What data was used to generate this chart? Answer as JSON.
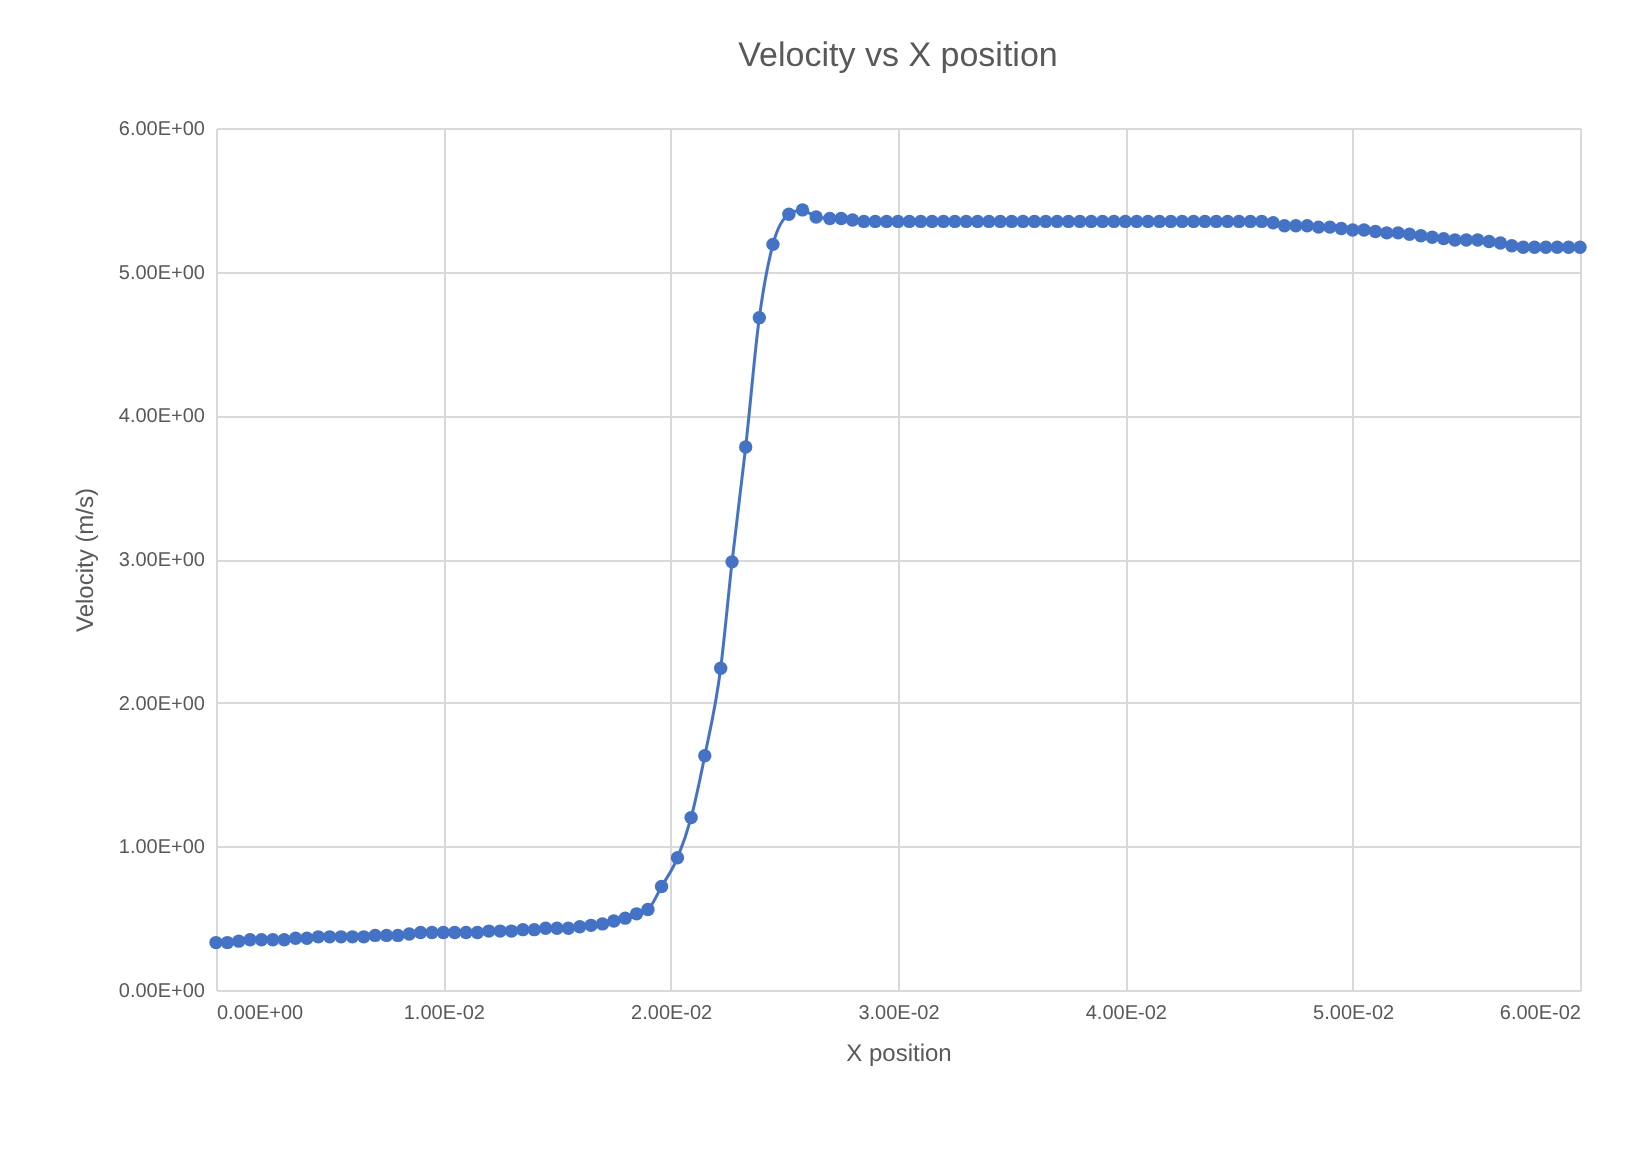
{
  "chart_data": {
    "type": "line",
    "title": "Velocity vs X position",
    "xlabel": "X position",
    "ylabel": "Velocity (m/s)",
    "x": [
      0,
      0.0005,
      0.001,
      0.0015,
      0.002,
      0.0025,
      0.003,
      0.0035,
      0.004,
      0.0045,
      0.005,
      0.0055,
      0.006,
      0.0065,
      0.007,
      0.0075,
      0.008,
      0.0085,
      0.009,
      0.0095,
      0.01,
      0.0105,
      0.011,
      0.0115,
      0.012,
      0.0125,
      0.013,
      0.0135,
      0.014,
      0.0145,
      0.015,
      0.0155,
      0.016,
      0.0165,
      0.017,
      0.0175,
      0.018,
      0.0185,
      0.019,
      0.0196,
      0.0203,
      0.0209,
      0.0215,
      0.0222,
      0.0227,
      0.0233,
      0.0239,
      0.0245,
      0.0252,
      0.0258,
      0.0264,
      0.027,
      0.0275,
      0.028,
      0.0285,
      0.029,
      0.0295,
      0.03,
      0.0305,
      0.031,
      0.0315,
      0.032,
      0.0325,
      0.033,
      0.0335,
      0.034,
      0.0345,
      0.035,
      0.0355,
      0.036,
      0.0365,
      0.037,
      0.0375,
      0.038,
      0.0385,
      0.039,
      0.0395,
      0.04,
      0.0405,
      0.041,
      0.0415,
      0.042,
      0.0425,
      0.043,
      0.0435,
      0.044,
      0.0445,
      0.045,
      0.0455,
      0.046,
      0.0465,
      0.047,
      0.0475,
      0.048,
      0.0485,
      0.049,
      0.0495,
      0.05,
      0.0505,
      0.051,
      0.0515,
      0.052,
      0.0525,
      0.053,
      0.0535,
      0.054,
      0.0545,
      0.055,
      0.0555,
      0.056,
      0.0565,
      0.057,
      0.0575,
      0.058,
      0.0585,
      0.059,
      0.0595,
      0.06
    ],
    "series": [
      {
        "color": "#4472c4",
        "values": [
          0.33,
          0.33,
          0.34,
          0.35,
          0.35,
          0.35,
          0.35,
          0.36,
          0.36,
          0.37,
          0.37,
          0.37,
          0.37,
          0.37,
          0.38,
          0.38,
          0.38,
          0.39,
          0.4,
          0.4,
          0.4,
          0.4,
          0.4,
          0.4,
          0.41,
          0.41,
          0.41,
          0.42,
          0.42,
          0.43,
          0.43,
          0.43,
          0.44,
          0.45,
          0.46,
          0.48,
          0.5,
          0.53,
          0.56,
          0.72,
          0.92,
          1.2,
          1.63,
          2.24,
          2.98,
          3.78,
          4.68,
          5.19,
          5.4,
          5.43,
          5.38,
          5.37,
          5.37,
          5.36,
          5.35,
          5.35,
          5.35,
          5.35,
          5.35,
          5.35,
          5.35,
          5.35,
          5.35,
          5.35,
          5.35,
          5.35,
          5.35,
          5.35,
          5.35,
          5.35,
          5.35,
          5.35,
          5.35,
          5.35,
          5.35,
          5.35,
          5.35,
          5.35,
          5.35,
          5.35,
          5.35,
          5.35,
          5.35,
          5.35,
          5.35,
          5.35,
          5.35,
          5.35,
          5.35,
          5.35,
          5.34,
          5.32,
          5.32,
          5.32,
          5.31,
          5.31,
          5.3,
          5.29,
          5.29,
          5.28,
          5.27,
          5.27,
          5.26,
          5.25,
          5.24,
          5.23,
          5.22,
          5.22,
          5.22,
          5.21,
          5.2,
          5.18,
          5.17,
          5.17,
          5.17,
          5.17,
          5.17,
          5.17
        ]
      }
    ],
    "xlim": [
      0,
      0.06
    ],
    "ylim": [
      0,
      6
    ],
    "xticks": [
      {
        "value": 0,
        "label": "0.00E+00"
      },
      {
        "value": 0.01,
        "label": "1.00E-02"
      },
      {
        "value": 0.02,
        "label": "2.00E-02"
      },
      {
        "value": 0.03,
        "label": "3.00E-02"
      },
      {
        "value": 0.04,
        "label": "4.00E-02"
      },
      {
        "value": 0.05,
        "label": "5.00E-02"
      },
      {
        "value": 0.06,
        "label": "6.00E-02"
      }
    ],
    "yticks": [
      {
        "value": 0,
        "label": "0.00E+00"
      },
      {
        "value": 1,
        "label": "1.00E+00"
      },
      {
        "value": 2,
        "label": "2.00E+00"
      },
      {
        "value": 3,
        "label": "3.00E+00"
      },
      {
        "value": 4,
        "label": "4.00E+00"
      },
      {
        "value": 5,
        "label": "5.00E+00"
      },
      {
        "value": 6,
        "label": "6.00E+00"
      }
    ],
    "grid": true,
    "marker": "circle",
    "line_style": "solid"
  }
}
